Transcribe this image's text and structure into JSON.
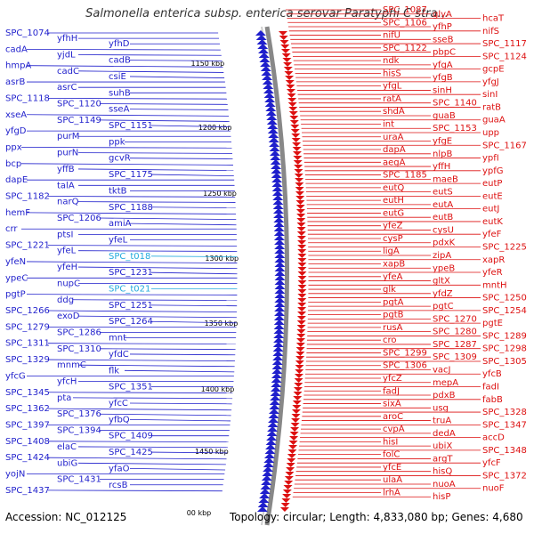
{
  "title": "Salmonella enterica subsp. enterica serovar Paratyphi C stra...",
  "footer": {
    "accession": "Accession: NC_012125",
    "summary": "Topology: circular; Length: 4,833,080 bp; Genes: 4,680"
  },
  "colors": {
    "left_gene": "#1f1fcc",
    "right_gene": "#dd1111",
    "rna_gene": "#22aadd",
    "backbone": "#888888",
    "tick": "#118811"
  },
  "kbp_marks": [
    "1150 kbp",
    "1200 kbp",
    "1250 kbp",
    "1300 kbp",
    "1350 kbp",
    "1400 kbp",
    "1450 kbp",
    "00 kbp"
  ],
  "left_labels": [
    "SPC_1074",
    "yfhH",
    "yfhD",
    "cadA",
    "yjdL",
    "cadB",
    "hmpA",
    "cadC",
    "csiE",
    "asrB",
    "asrC",
    "suhB",
    "SPC_1118",
    "SPC_1120",
    "sseA",
    "xseA",
    "SPC_1149",
    "SPC_1151",
    "yfgD",
    "purM",
    "ppk",
    "ppx",
    "purN",
    "gcvR",
    "bcp",
    "yffB",
    "SPC_1175",
    "dapE",
    "talA",
    "tktB",
    "SPC_1182",
    "narQ",
    "SPC_1188",
    "hemF",
    "SPC_1206",
    "amiA",
    "crr",
    "ptsI",
    "yfeL",
    "SPC_1221",
    "yfeL",
    "SPC_t018",
    "yfeN",
    "yfeH",
    "SPC_1231",
    "ypeC",
    "nupC",
    "SPC_t021",
    "pgtP",
    "ddg",
    "SPC_1251",
    "SPC_1266",
    "exoD",
    "SPC_1264",
    "SPC_1279",
    "SPC_1286",
    "mnt",
    "SPC_1311",
    "SPC_1310",
    "yfdC",
    "SPC_1329",
    "mnmC",
    "flk",
    "yfcG",
    "yfcH",
    "SPC_1351",
    "SPC_1345",
    "pta",
    "yfcC",
    "SPC_1362",
    "SPC_1376",
    "yfbQ",
    "SPC_1397",
    "SPC_1394",
    "SPC_1409",
    "SPC_1408",
    "elaC",
    "SPC_1425",
    "SPC_1424",
    "ubiG",
    "yfaO",
    "yojN",
    "SPC_1431",
    "rcsB",
    "SPC_1437"
  ],
  "right_labels": [
    "SPC_1087",
    "glyA",
    "hcaT",
    "SPC_1106",
    "yfhP",
    "nifS",
    "nifU",
    "sseB",
    "SPC_1117",
    "SPC_1122",
    "pbpC",
    "SPC_1124",
    "ndk",
    "yfgA",
    "gcpE",
    "hisS",
    "yfgB",
    "yfgJ",
    "yfgL",
    "sinH",
    "sinI",
    "ratA",
    "SPC_1140",
    "ratB",
    "shdA",
    "guaB",
    "guaA",
    "int",
    "SPC_1153",
    "upp",
    "uraA",
    "yfgE",
    "SPC_1167",
    "dapA",
    "nlpB",
    "ypfI",
    "aegA",
    "yffH",
    "ypfG",
    "SPC_1185",
    "maeB",
    "eutP",
    "eutQ",
    "eutS",
    "eutE",
    "eutH",
    "eutA",
    "eutJ",
    "eutG",
    "eutB",
    "eutK",
    "yfeZ",
    "cysU",
    "yfeF",
    "cysP",
    "pdxK",
    "SPC_1225",
    "ligA",
    "zipA",
    "xapR",
    "xapB",
    "ypeB",
    "yfeR",
    "yfeA",
    "gltX",
    "mntH",
    "glk",
    "yfdZ",
    "SPC_1250",
    "pgtA",
    "pgtC",
    "SPC_1254",
    "pgtB",
    "SPC_1270",
    "pgtE",
    "rusA",
    "SPC_1280",
    "SPC_1289",
    "cro",
    "SPC_1287",
    "SPC_1298",
    "SPC_1299",
    "SPC_1309",
    "SPC_1305",
    "SPC_1306",
    "vacJ",
    "yfcB",
    "yfcZ",
    "mepA",
    "fadI",
    "fadJ",
    "pdxB",
    "fabB",
    "sixA",
    "usg",
    "SPC_1328",
    "aroC",
    "truA",
    "SPC_1347",
    "cvpA",
    "dedA",
    "accD",
    "hisI",
    "ubiX",
    "SPC_1348",
    "folC",
    "argT",
    "yfcF",
    "yfcE",
    "hisQ",
    "SPC_1372",
    "ulaA",
    "nuoA",
    "nuoF",
    "lrhA",
    "hisP"
  ]
}
